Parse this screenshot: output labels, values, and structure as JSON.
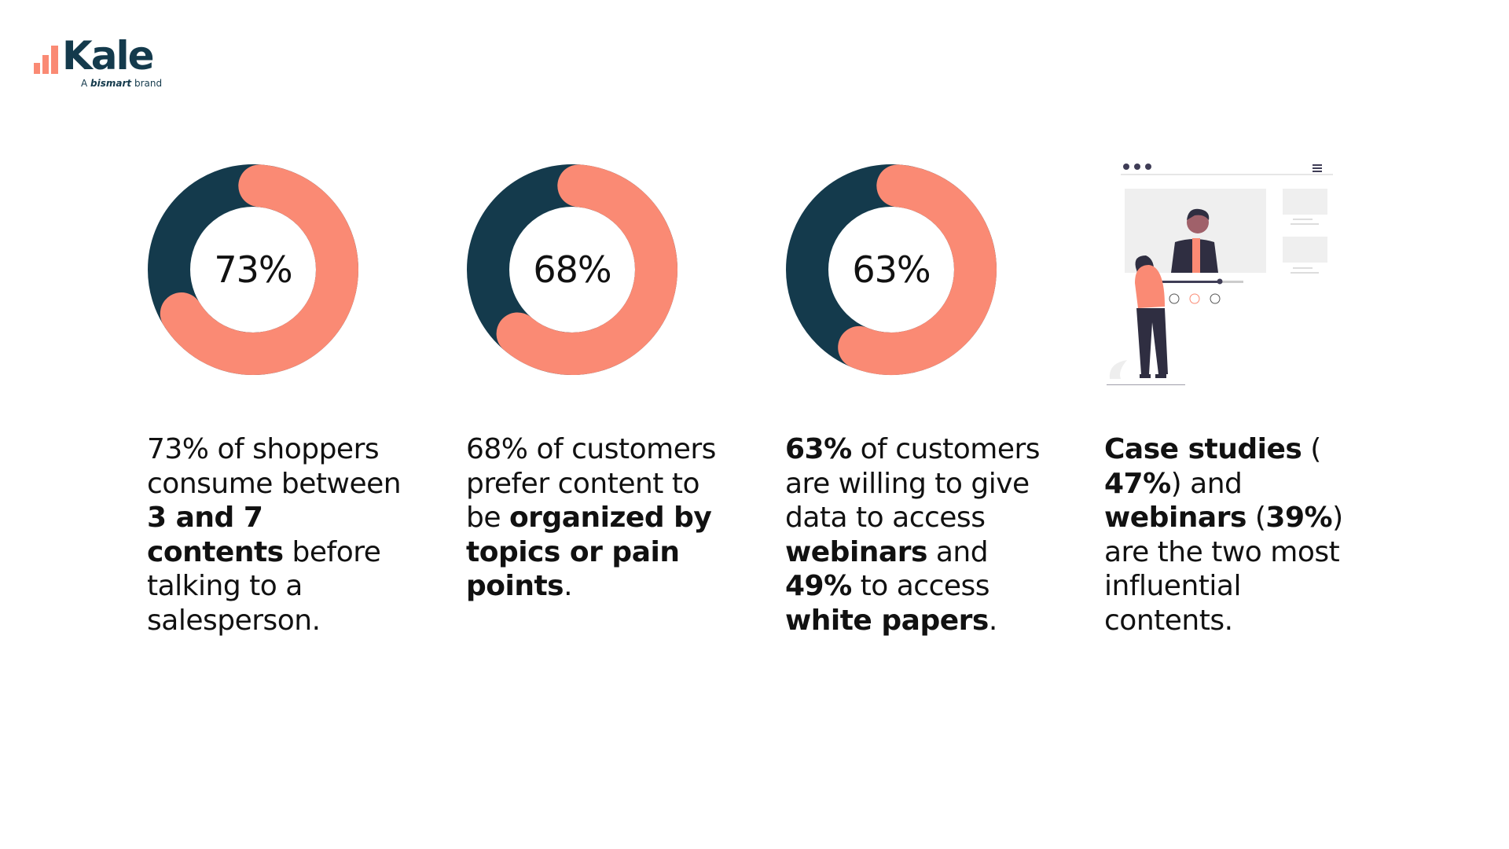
{
  "brand": {
    "name": "Kale",
    "tagline_prefix": "A",
    "tagline_brand": "bismart",
    "tagline_suffix": "brand"
  },
  "colors": {
    "accent": "#fa8a74",
    "dark": "#143a4c"
  },
  "stats": [
    {
      "percent": 73,
      "label": "73%",
      "segments": [
        {
          "t": "73% of shoppers consume between ",
          "b": false
        },
        {
          "t": "3 and 7 contents",
          "b": true
        },
        {
          "t": " before talking to a salesperson.",
          "b": false
        }
      ]
    },
    {
      "percent": 68,
      "label": "68%",
      "segments": [
        {
          "t": "68% of customers prefer content to be ",
          "b": false
        },
        {
          "t": "organized by topics or pain points",
          "b": true
        },
        {
          "t": ".",
          "b": false
        }
      ]
    },
    {
      "percent": 63,
      "label": "63%",
      "segments": [
        {
          "t": "63%",
          "b": true
        },
        {
          "t": " of customers are willing to give data to access ",
          "b": false
        },
        {
          "t": "webinars",
          "b": true
        },
        {
          "t": " and ",
          "b": false
        },
        {
          "t": "49%",
          "b": true
        },
        {
          "t": " to access ",
          "b": false
        },
        {
          "t": "white papers",
          "b": true
        },
        {
          "t": ".",
          "b": false
        }
      ]
    }
  ],
  "final": {
    "segments": [
      {
        "t": "Case studies",
        "b": true
      },
      {
        "t": " (",
        "b": false
      },
      {
        "t": "47%",
        "b": true
      },
      {
        "t": ") and ",
        "b": false
      },
      {
        "t": "webinars",
        "b": true
      },
      {
        "t": " (",
        "b": false
      },
      {
        "t": "39%",
        "b": true
      },
      {
        "t": ") are the two most influential contents.",
        "b": false
      }
    ]
  }
}
